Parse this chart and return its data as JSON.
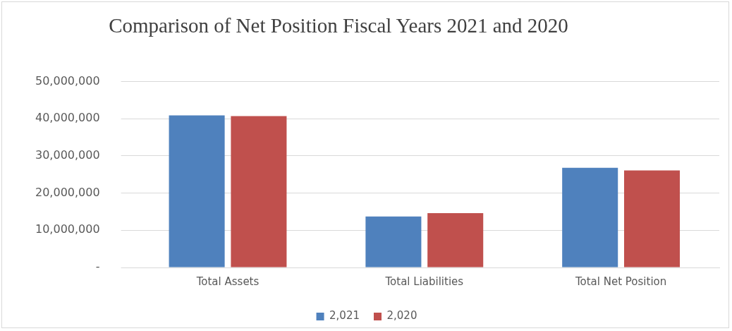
{
  "chart_data": {
    "type": "bar",
    "title": "Comparison of Net Position Fiscal Years 2021 and 2020",
    "categories": [
      "Total Assets",
      "Total Liabilities",
      "Total Net Position"
    ],
    "series": [
      {
        "name": "2,021",
        "color": "#4f81bd",
        "values": [
          40900000,
          13700000,
          26800000
        ]
      },
      {
        "name": "2,020",
        "color": "#c0504d",
        "values": [
          40700000,
          14600000,
          26100000
        ]
      }
    ],
    "ylim": [
      0,
      50000000
    ],
    "yticks": [
      {
        "value": 0,
        "label": "-"
      },
      {
        "value": 10000000,
        "label": "10,000,000"
      },
      {
        "value": 20000000,
        "label": "20,000,000"
      },
      {
        "value": 30000000,
        "label": "30,000,000"
      },
      {
        "value": 40000000,
        "label": "40,000,000"
      },
      {
        "value": 50000000,
        "label": "50,000,000"
      }
    ],
    "grid": "y",
    "legend": "bottom"
  }
}
